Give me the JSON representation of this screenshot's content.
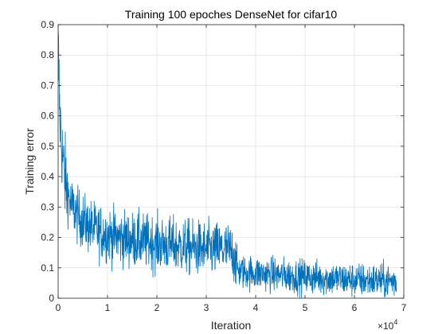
{
  "chart_data": {
    "type": "line",
    "title": "Training 100 epoches DenseNet for cifar10",
    "xlabel": "Iteration",
    "ylabel": "Training error",
    "xlim": [
      0,
      70000
    ],
    "ylim": [
      0,
      0.9
    ],
    "x_ticks": [
      0,
      10000,
      20000,
      30000,
      40000,
      50000,
      60000,
      70000
    ],
    "x_tick_labels": [
      "0",
      "1",
      "2",
      "3",
      "4",
      "5",
      "6",
      "7"
    ],
    "x_multiplier_base": "×10",
    "x_multiplier_exponent": "4",
    "y_ticks": [
      0,
      0.1,
      0.2,
      0.3,
      0.4,
      0.5,
      0.6,
      0.7,
      0.8,
      0.9
    ],
    "y_tick_labels": [
      "0",
      "0.1",
      "0.2",
      "0.3",
      "0.4",
      "0.5",
      "0.6",
      "0.7",
      "0.8",
      "0.9"
    ],
    "grid": true,
    "x_max_data": 68500,
    "series_color": "#0072BD",
    "trend": {
      "x": [
        0,
        300,
        800,
        1500,
        2500,
        4000,
        6000,
        8000,
        12000,
        16000,
        20000,
        25000,
        30000,
        34000,
        35500,
        36500,
        38000,
        42000,
        46000,
        50000,
        55000,
        60000,
        65000,
        68500
      ],
      "y": [
        0.86,
        0.62,
        0.48,
        0.38,
        0.31,
        0.27,
        0.24,
        0.22,
        0.2,
        0.19,
        0.18,
        0.17,
        0.16,
        0.16,
        0.15,
        0.09,
        0.085,
        0.08,
        0.075,
        0.07,
        0.065,
        0.06,
        0.058,
        0.055
      ]
    }
  }
}
